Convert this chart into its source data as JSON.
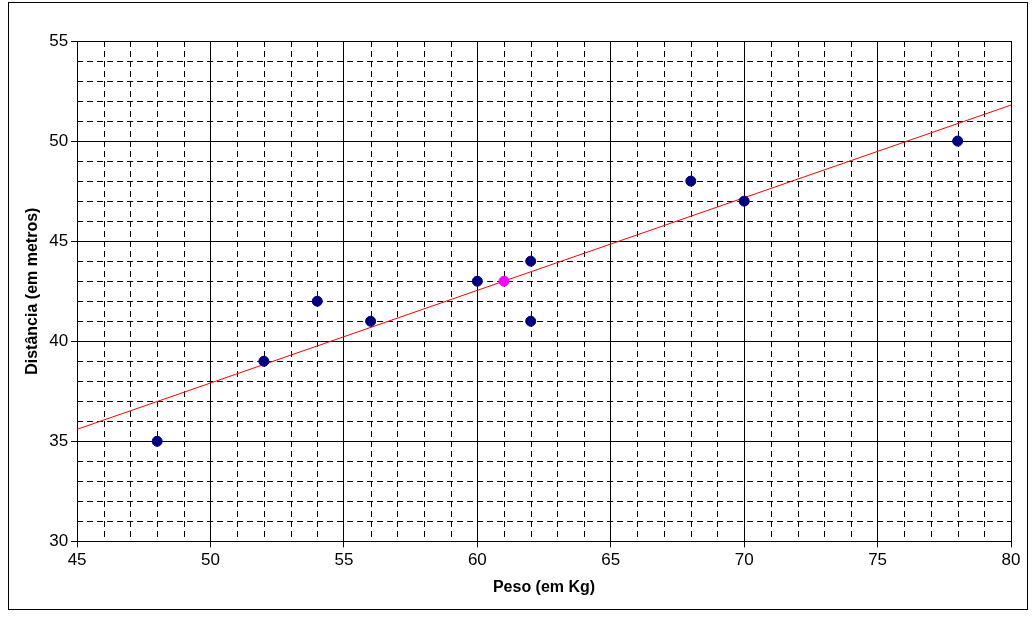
{
  "chart_data": {
    "type": "scatter",
    "xlabel": "Peso (em Kg)",
    "ylabel": "Distância (em metros)",
    "xlim": [
      45,
      80
    ],
    "xticks": [
      45,
      50,
      55,
      60,
      65,
      70,
      75,
      80
    ],
    "ylim": [
      30,
      55
    ],
    "yticks": [
      30,
      35,
      40,
      45,
      50,
      55
    ],
    "grid": true,
    "legend": false,
    "marker": "circle",
    "series": [
      {
        "color": "#000080",
        "x": [
          48,
          52,
          54,
          56,
          60,
          62,
          62,
          68,
          70,
          78
        ],
        "values": [
          35,
          39,
          42,
          41,
          43,
          44,
          41,
          48,
          47,
          50
        ]
      },
      {
        "color": "#ff00ff",
        "x": [
          61
        ],
        "values": [
          43
        ]
      },
      {
        "type": "line",
        "color": "#ff0000",
        "x": [
          45,
          80
        ],
        "values": [
          35.6,
          51.8
        ],
        "marker": "none",
        "line_style": "solid"
      }
    ]
  }
}
